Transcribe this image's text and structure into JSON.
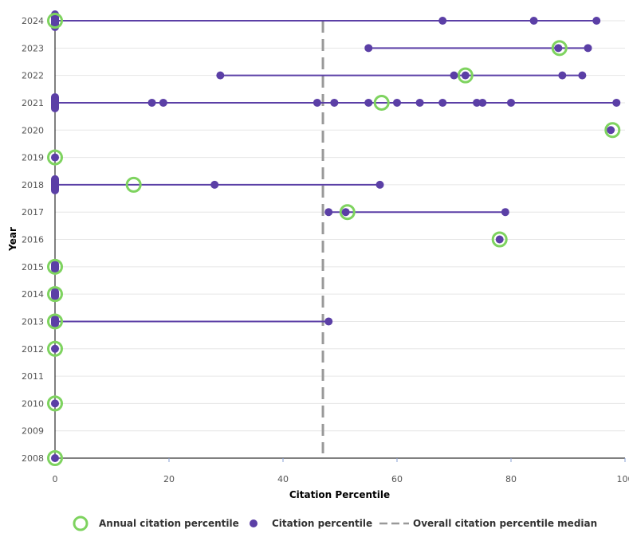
{
  "chart_data": {
    "type": "scatter",
    "xlabel": "Citation Percentile",
    "ylabel": "Year",
    "xlim": [
      0,
      100
    ],
    "x_ticks": [
      "0",
      "20",
      "40",
      "60",
      "80",
      "100"
    ],
    "years": [
      "2008",
      "2009",
      "2010",
      "2011",
      "2012",
      "2013",
      "2014",
      "2015",
      "2016",
      "2017",
      "2018",
      "2019",
      "2020",
      "2021",
      "2022",
      "2023",
      "2024"
    ],
    "median": 47,
    "colors": {
      "annual": "#7ed35f",
      "citation": "#5b3fa6",
      "median": "#999999",
      "grid": "#e6e6e6"
    },
    "legend": {
      "position": "bottom-center",
      "annual_label": "Annual citation percentile",
      "citation_label": "Citation percentile",
      "median_label": "Overall citation percentile median"
    },
    "series": [
      {
        "year": 2008,
        "citations": [
          0
        ],
        "annual": 0
      },
      {
        "year": 2010,
        "citations": [
          0
        ],
        "annual": 0
      },
      {
        "year": 2012,
        "citations": [
          0
        ],
        "annual": 0
      },
      {
        "year": 2013,
        "citations": [
          0,
          0,
          48
        ],
        "annual": 0
      },
      {
        "year": 2014,
        "citations": [
          0,
          0
        ],
        "annual": 0
      },
      {
        "year": 2015,
        "citations": [
          0,
          0
        ],
        "annual": 0
      },
      {
        "year": 2016,
        "citations": [
          78
        ],
        "annual": 78
      },
      {
        "year": 2017,
        "citations": [
          48,
          51,
          79
        ],
        "annual": 51.3
      },
      {
        "year": 2018,
        "citations": [
          0,
          0,
          0,
          28,
          57
        ],
        "annual": 13.8
      },
      {
        "year": 2019,
        "citations": [
          0
        ],
        "annual": 0
      },
      {
        "year": 2020,
        "citations": [
          97.5
        ],
        "annual": 97.8
      },
      {
        "year": 2021,
        "citations": [
          0,
          0,
          0,
          17,
          19,
          46,
          49,
          55,
          60,
          64,
          68,
          74,
          75,
          80,
          98.5
        ],
        "annual": 57.3
      },
      {
        "year": 2022,
        "citations": [
          29,
          70,
          72,
          89,
          92.5
        ],
        "annual": 72
      },
      {
        "year": 2023,
        "citations": [
          55,
          88.3,
          93.5
        ],
        "annual": 88.5
      },
      {
        "year": 2024,
        "citations": [
          0,
          0,
          0,
          0,
          0,
          68,
          84,
          95
        ],
        "annual": 0
      }
    ]
  }
}
